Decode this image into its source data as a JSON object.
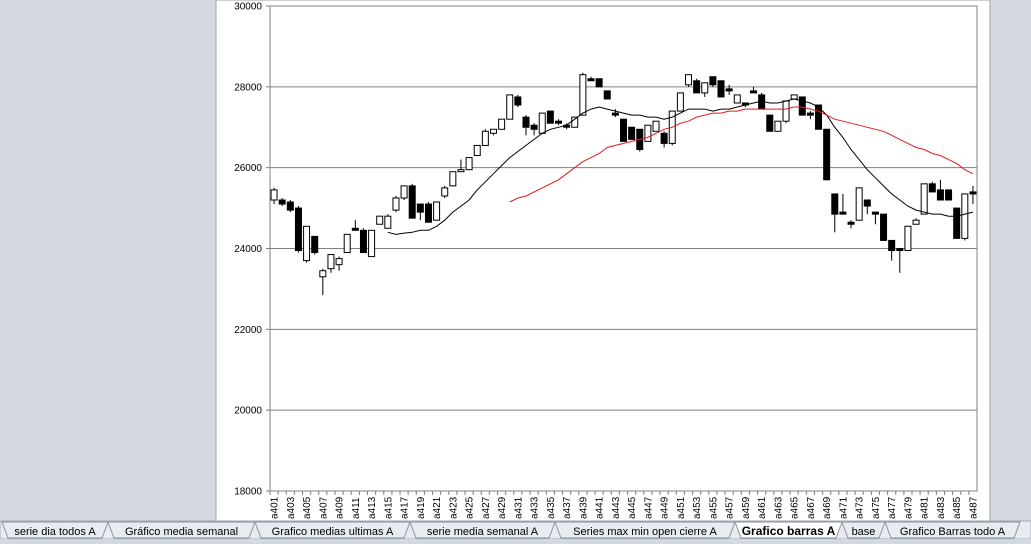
{
  "chart_data": {
    "type": "candlestick",
    "categories": [
      "a401",
      null,
      "a403",
      null,
      "a405",
      null,
      "a407",
      null,
      "a409",
      null,
      "a411",
      null,
      "a413",
      null,
      "a415",
      null,
      "a417",
      null,
      "a419",
      null,
      "a421",
      null,
      "a423",
      null,
      "a425",
      null,
      "a427",
      null,
      "a429",
      null,
      "a431",
      null,
      "a433",
      null,
      "a435",
      null,
      "a437",
      null,
      "a439",
      null,
      "a441",
      null,
      "a443",
      null,
      "a445",
      null,
      "a447",
      null,
      "a449",
      null,
      "a451",
      null,
      "a453",
      null,
      "a455",
      null,
      "a457",
      null,
      "a459",
      null,
      "a461",
      null,
      "a463",
      null,
      "a465",
      null,
      "a467",
      null,
      "a469",
      null,
      "a471",
      null,
      "a473",
      null,
      "a475",
      null,
      "a477",
      null,
      "a479",
      null,
      "a481",
      null,
      "a483",
      null,
      "a485",
      null,
      "a487"
    ],
    "ohlc": {
      "open": [
        25200,
        25200,
        25150,
        25000,
        23700,
        24300,
        23300,
        23500,
        23600,
        23900,
        24500,
        24450,
        23800,
        24600,
        24500,
        24950,
        25250,
        25550,
        25100,
        25100,
        24700,
        25300,
        25550,
        25900,
        25950,
        26300,
        26550,
        26850,
        26950,
        27200,
        27750,
        27250,
        27050,
        26850,
        27400,
        27150,
        27050,
        27000,
        27300,
        28200,
        28200,
        27900,
        27350,
        27200,
        27000,
        26950,
        26650,
        26900,
        26850,
        26600,
        27400,
        28050,
        28150,
        27850,
        28250,
        28150,
        27950,
        27600,
        27600,
        27900,
        27800,
        27300,
        26900,
        27150,
        27700,
        27750,
        27350,
        27550,
        26950,
        25350,
        24900,
        24650,
        24700,
        25200,
        24900,
        24850,
        24200,
        24000,
        23950,
        24600,
        24850,
        25600,
        25450,
        25450,
        25000,
        24250,
        25400
      ],
      "high": [
        25500,
        25250,
        25200,
        25050,
        24550,
        24300,
        23500,
        23850,
        23800,
        24350,
        24700,
        24500,
        24450,
        24800,
        24850,
        25300,
        25550,
        25600,
        25100,
        25150,
        25150,
        25550,
        25900,
        26200,
        26250,
        26550,
        26950,
        26950,
        27200,
        27800,
        27800,
        27300,
        27100,
        27350,
        27400,
        27200,
        27100,
        27250,
        28350,
        28250,
        28200,
        27900,
        27450,
        27200,
        27000,
        26950,
        27050,
        27150,
        26900,
        27400,
        27850,
        28300,
        28200,
        28100,
        28250,
        28150,
        28050,
        27800,
        27600,
        28000,
        27850,
        27300,
        27150,
        27650,
        27800,
        27750,
        27400,
        27550,
        26950,
        25350,
        25350,
        24700,
        25500,
        25200,
        24900,
        24850,
        24200,
        24000,
        24550,
        24750,
        25600,
        25650,
        25700,
        25450,
        25000,
        25350,
        25550
      ],
      "low": [
        25100,
        25050,
        24900,
        23900,
        23650,
        23850,
        22850,
        23400,
        23450,
        23900,
        24450,
        23900,
        23800,
        24600,
        24500,
        24900,
        25200,
        24750,
        24700,
        24650,
        24700,
        25250,
        25550,
        25900,
        25950,
        26300,
        26550,
        26800,
        26950,
        27200,
        27500,
        26800,
        26800,
        26850,
        27100,
        27050,
        26950,
        27000,
        27300,
        28150,
        28000,
        27700,
        27250,
        26650,
        26700,
        26400,
        26650,
        26900,
        26500,
        26550,
        27400,
        28000,
        27850,
        27750,
        28000,
        27750,
        27800,
        27600,
        27500,
        27850,
        27450,
        26900,
        26900,
        27100,
        27700,
        27300,
        27200,
        26950,
        25700,
        24400,
        24850,
        24500,
        24700,
        24850,
        24600,
        24200,
        23700,
        23400,
        23950,
        24600,
        24850,
        25400,
        25200,
        25200,
        24250,
        24200,
        25100
      ],
      "close": [
        25450,
        25100,
        24950,
        23950,
        24550,
        23900,
        23450,
        23850,
        23750,
        24350,
        24450,
        23900,
        24450,
        24800,
        24800,
        25250,
        25550,
        24750,
        24900,
        24650,
        25150,
        25500,
        25900,
        25950,
        26250,
        26550,
        26900,
        26950,
        27200,
        27800,
        27550,
        27000,
        26950,
        27350,
        27100,
        27100,
        27000,
        27250,
        28300,
        28150,
        28000,
        27700,
        27300,
        26650,
        26700,
        26450,
        27050,
        27150,
        26600,
        27400,
        27850,
        28300,
        27850,
        28100,
        28050,
        27750,
        27900,
        27800,
        27550,
        27850,
        27450,
        26900,
        27150,
        27650,
        27800,
        27300,
        27300,
        26950,
        25700,
        24850,
        24850,
        24600,
        25500,
        25050,
        24850,
        24200,
        23950,
        23950,
        24550,
        24700,
        25600,
        25400,
        25200,
        25200,
        24250,
        25350,
        25350
      ]
    },
    "series": [
      {
        "color": "#000000",
        "values": [
          null,
          null,
          null,
          null,
          null,
          null,
          null,
          null,
          null,
          null,
          null,
          null,
          null,
          null,
          24400,
          24350,
          24380,
          24400,
          24450,
          24450,
          24550,
          24700,
          24900,
          25050,
          25200,
          25450,
          25650,
          25850,
          26050,
          26250,
          26400,
          26550,
          26700,
          26850,
          26950,
          27000,
          27050,
          27200,
          27350,
          27450,
          27500,
          27450,
          27400,
          27350,
          27300,
          27300,
          27250,
          27250,
          27200,
          27250,
          27350,
          27450,
          27450,
          27450,
          27400,
          27450,
          27450,
          27500,
          27550,
          27600,
          27650,
          27600,
          27600,
          27650,
          27700,
          27650,
          27600,
          27500,
          27300,
          27000,
          26750,
          26450,
          26200,
          25950,
          25750,
          25550,
          25350,
          25200,
          25050,
          24950,
          24900,
          24850,
          24850,
          24800,
          24800,
          24850,
          24900
        ]
      },
      {
        "color": "#e41a1c",
        "values": [
          null,
          null,
          null,
          null,
          null,
          null,
          null,
          null,
          null,
          null,
          null,
          null,
          null,
          null,
          null,
          null,
          null,
          null,
          null,
          null,
          null,
          null,
          null,
          null,
          null,
          null,
          null,
          null,
          null,
          25150,
          25250,
          25300,
          25400,
          25500,
          25600,
          25700,
          25850,
          26000,
          26150,
          26250,
          26350,
          26500,
          26550,
          26600,
          26650,
          26700,
          26750,
          26850,
          26950,
          27000,
          27100,
          27150,
          27250,
          27300,
          27350,
          27350,
          27400,
          27400,
          27450,
          27450,
          27450,
          27450,
          27450,
          27450,
          27500,
          27500,
          27450,
          27400,
          27300,
          27200,
          27150,
          27100,
          27050,
          27000,
          26950,
          26900,
          26800,
          26700,
          26600,
          26500,
          26450,
          26350,
          26300,
          26200,
          26100,
          25950,
          25850
        ]
      }
    ],
    "up_color": "#ffffff",
    "down_color": "#000000",
    "ylim": [
      18000,
      30000
    ],
    "yticks": [
      18000,
      20000,
      22000,
      24000,
      26000,
      28000,
      30000
    ],
    "grid": true
  },
  "sheet_tabs": [
    "serie dia todos A",
    "Gráfico media semanal",
    "Grafico medias ultimas A",
    "serie media semanal A",
    "Series max min open cierre A",
    "Grafico barras A",
    "base",
    "Grafico Barras todo A"
  ],
  "active_tab": 5
}
